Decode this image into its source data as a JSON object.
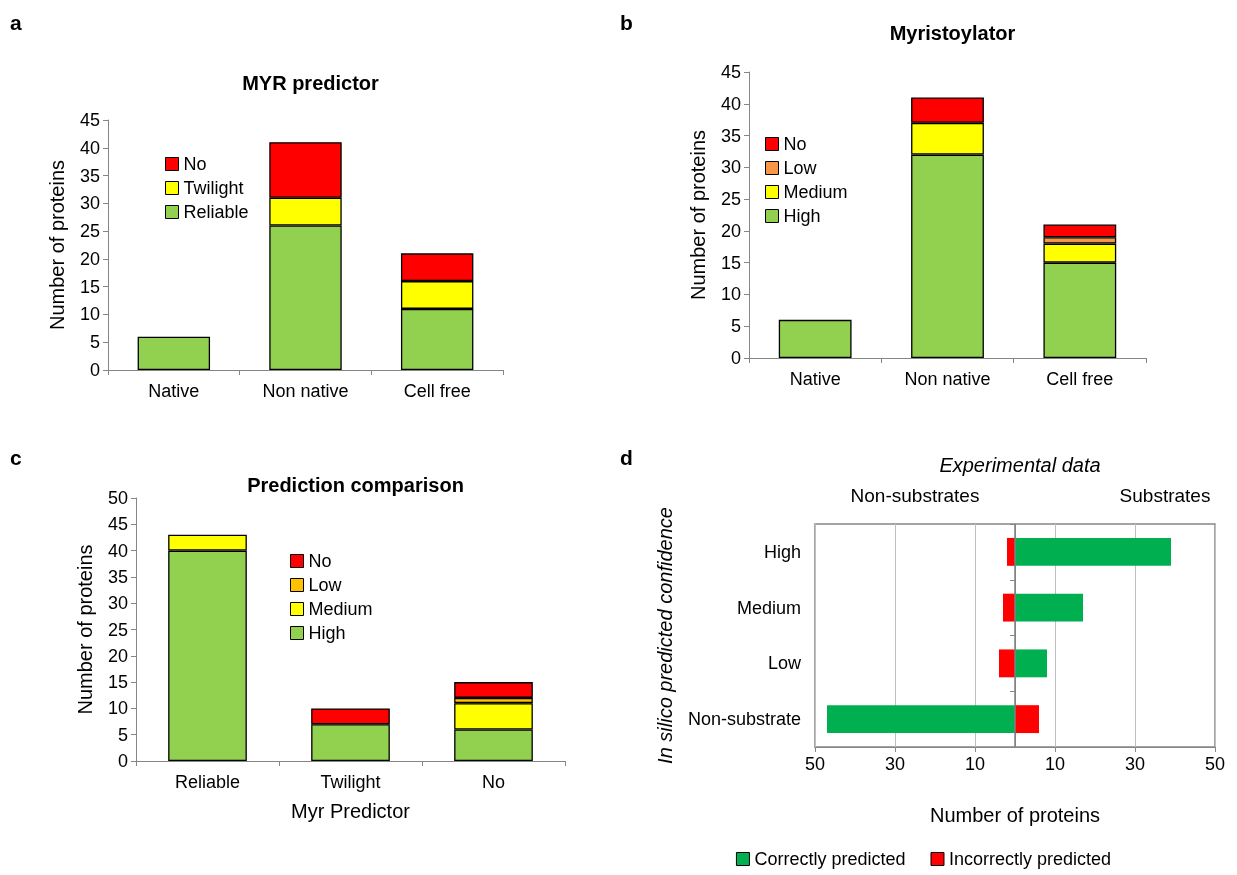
{
  "chart_data": [
    {
      "type": "bar",
      "title": "MYR predictor",
      "ylabel": "Number of proteins",
      "annotations": [
        "a"
      ],
      "categories": [
        "Native",
        "Non native",
        "Cell free"
      ],
      "stacked": true,
      "legend": "top left",
      "grid": false,
      "ylim": [
        0,
        45
      ],
      "yticks": [
        0,
        5,
        10,
        15,
        20,
        25,
        30,
        35,
        40,
        45
      ],
      "series": [
        {
          "name": "Reliable",
          "color": "#92d050",
          "values": [
            6,
            26,
            11
          ]
        },
        {
          "name": "Twilight",
          "color": "#ffff00",
          "values": [
            null,
            5,
            5
          ]
        },
        {
          "name": "No",
          "color": "#ff0000",
          "values": [
            null,
            10,
            5
          ]
        }
      ]
    },
    {
      "type": "bar",
      "title": "Myristoylator",
      "ylabel": "Number of proteins",
      "annotations": [
        "b"
      ],
      "categories": [
        "Native",
        "Non native",
        "Cell free"
      ],
      "stacked": true,
      "legend": "top left",
      "grid": false,
      "ylim": [
        0,
        45
      ],
      "yticks": [
        0,
        5,
        10,
        15,
        20,
        25,
        30,
        35,
        40,
        45
      ],
      "series": [
        {
          "name": "High",
          "color": "#92d050",
          "values": [
            6,
            32,
            15
          ]
        },
        {
          "name": "Medium",
          "color": "#ffff00",
          "values": [
            null,
            5,
            3
          ]
        },
        {
          "name": "Low",
          "color": "#f79646",
          "values": [
            null,
            null,
            1
          ]
        },
        {
          "name": "No",
          "color": "#ff0000",
          "values": [
            null,
            4,
            2
          ]
        }
      ]
    },
    {
      "type": "bar",
      "title": "Prediction comparison",
      "xlabel": "Myr Predictor",
      "ylabel": "Number of proteins",
      "annotations": [
        "c"
      ],
      "categories": [
        "Reliable",
        "Twilight",
        "No"
      ],
      "stacked": true,
      "legend": "top",
      "grid": false,
      "ylim": [
        0,
        50
      ],
      "yticks": [
        0,
        5,
        10,
        15,
        20,
        25,
        30,
        35,
        40,
        45,
        50
      ],
      "series": [
        {
          "name": "High",
          "color": "#92d050",
          "values": [
            40,
            7,
            6
          ]
        },
        {
          "name": "Medium",
          "color": "#ffff00",
          "values": [
            3,
            null,
            5
          ]
        },
        {
          "name": "Low",
          "color": "#ffc000",
          "values": [
            null,
            null,
            1
          ]
        },
        {
          "name": "No",
          "color": "#ff0000",
          "values": [
            null,
            3,
            3
          ]
        }
      ]
    },
    {
      "type": "bar",
      "orientation": "horizontal",
      "title": "Experimental data",
      "xlabel": "Number of proteins",
      "ylabel": "In silico predicted confidence",
      "annotations": [
        "d",
        "Non-substrates",
        "Substrates"
      ],
      "categories": [
        "High",
        "Medium",
        "Low",
        "Non-substrate"
      ],
      "stacked": true,
      "legend": "bottom",
      "grid": "x",
      "xlim": [
        -50,
        50
      ],
      "xticks": [
        {
          "value": -50,
          "label": "50"
        },
        {
          "value": -30,
          "label": "30"
        },
        {
          "value": -10,
          "label": "10"
        },
        {
          "value": 10,
          "label": "10"
        },
        {
          "value": 30,
          "label": "30"
        },
        {
          "value": 50,
          "label": "50"
        }
      ],
      "ref_lines": [
        {
          "axis": "x",
          "value": 0,
          "color": "#808080"
        }
      ],
      "series": [
        {
          "name": "Correctly predicted",
          "color": "#00b050",
          "values": [
            39,
            17,
            8,
            -47
          ]
        },
        {
          "name": "Incorrectly predicted",
          "color": "#ff0000",
          "values": [
            -2,
            -3,
            -4,
            6
          ]
        }
      ]
    }
  ]
}
